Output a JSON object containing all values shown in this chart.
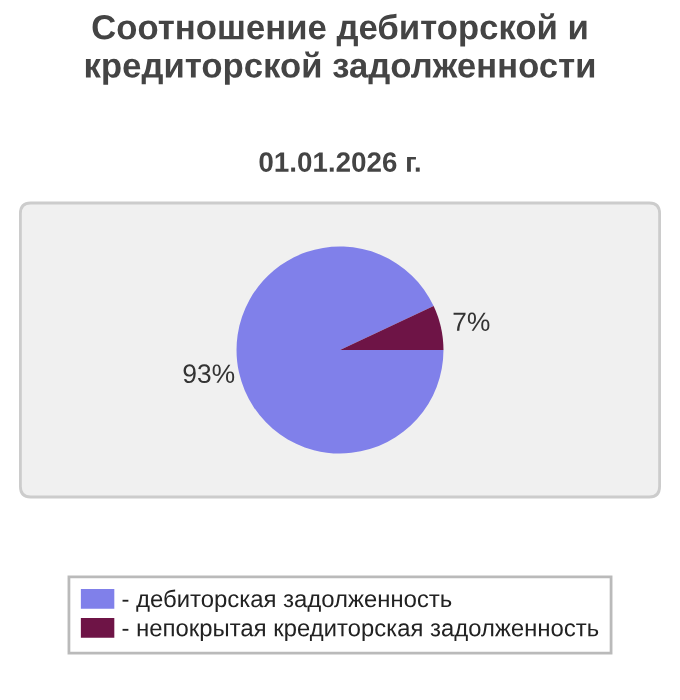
{
  "chart_data": {
    "type": "pie",
    "title": "Соотношение дебиторской и кредиторской задолженности",
    "subtitle": "01.01.2026 г.",
    "categories": [
      "- дебиторская задолженность",
      "- непокрытая кредиторская задолженность"
    ],
    "values": [
      93,
      7
    ],
    "colors": [
      "#8080ea",
      "#6e1446"
    ],
    "value_labels": [
      "93%",
      "7%"
    ],
    "legend": "bottom"
  }
}
